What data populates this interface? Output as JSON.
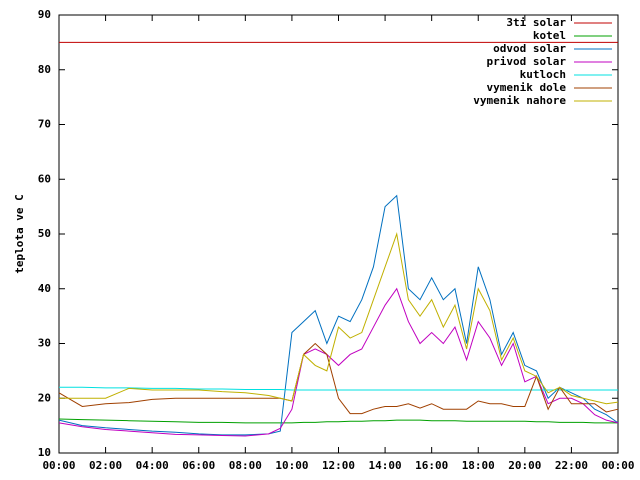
{
  "chart_data": {
    "type": "line",
    "ylabel": "teplota ve C",
    "x": [
      0,
      1,
      2,
      3,
      4,
      5,
      6,
      7,
      8,
      9,
      9.5,
      10,
      10.5,
      11,
      11.5,
      12,
      12.5,
      13,
      13.5,
      14,
      14.5,
      15,
      15.5,
      16,
      16.5,
      17,
      17.5,
      18,
      18.5,
      19,
      19.5,
      20,
      20.5,
      21,
      21.5,
      22,
      22.5,
      23,
      23.5,
      24
    ],
    "xlim": [
      0,
      24
    ],
    "xticks": [
      {
        "value": 0,
        "label": "00:00"
      },
      {
        "value": 2,
        "label": "02:00"
      },
      {
        "value": 4,
        "label": "04:00"
      },
      {
        "value": 6,
        "label": "06:00"
      },
      {
        "value": 8,
        "label": "08:00"
      },
      {
        "value": 10,
        "label": "10:00"
      },
      {
        "value": 12,
        "label": "12:00"
      },
      {
        "value": 14,
        "label": "14:00"
      },
      {
        "value": 16,
        "label": "16:00"
      },
      {
        "value": 18,
        "label": "18:00"
      },
      {
        "value": 20,
        "label": "20:00"
      },
      {
        "value": 22,
        "label": "22:00"
      },
      {
        "value": 24,
        "label": "00:00"
      }
    ],
    "ylim": [
      10,
      90
    ],
    "yticks": [
      10,
      20,
      30,
      40,
      50,
      60,
      70,
      80,
      90
    ],
    "legend": "top-right",
    "series": [
      {
        "name": "3ti solar",
        "color": "#c00000",
        "values": [
          85,
          85,
          85,
          85,
          85,
          85,
          85,
          85,
          85,
          85,
          85,
          85,
          85,
          85,
          85,
          85,
          85,
          85,
          85,
          85,
          85,
          85,
          85,
          85,
          85,
          85,
          85,
          85,
          85,
          85,
          85,
          85,
          85,
          85,
          85,
          85,
          85,
          85,
          85,
          85
        ]
      },
      {
        "name": "kotel",
        "color": "#00a000",
        "values": [
          16.2,
          16.1,
          16,
          15.9,
          15.8,
          15.7,
          15.6,
          15.6,
          15.5,
          15.5,
          15.5,
          15.5,
          15.6,
          15.6,
          15.7,
          15.7,
          15.8,
          15.8,
          15.9,
          15.9,
          16,
          16,
          16,
          15.9,
          15.9,
          15.9,
          15.8,
          15.8,
          15.8,
          15.8,
          15.8,
          15.8,
          15.7,
          15.7,
          15.6,
          15.6,
          15.6,
          15.5,
          15.5,
          15.5
        ]
      },
      {
        "name": "odvod solar",
        "color": "#0070c0",
        "values": [
          16,
          15,
          14.6,
          14.3,
          14,
          13.8,
          13.5,
          13.3,
          13.3,
          13.5,
          14,
          32,
          34,
          36,
          30,
          35,
          34,
          38,
          44,
          55,
          57,
          40,
          38,
          42,
          38,
          40,
          30,
          44,
          38,
          28,
          32,
          26,
          25,
          20,
          22,
          21,
          20,
          18,
          17,
          15.5
        ]
      },
      {
        "name": "privod solar",
        "color": "#c000c0",
        "values": [
          15.5,
          14.8,
          14.3,
          14,
          13.7,
          13.4,
          13.3,
          13.2,
          13.1,
          13.5,
          14.5,
          18,
          28,
          29,
          28,
          26,
          28,
          29,
          33,
          37,
          40,
          34,
          30,
          32,
          30,
          33,
          27,
          34,
          31,
          26,
          30,
          23,
          24,
          19,
          20,
          20,
          19,
          17,
          16,
          15.5
        ]
      },
      {
        "name": "kutloch",
        "color": "#00e0e0",
        "values": [
          22,
          22,
          21.9,
          21.9,
          21.8,
          21.8,
          21.7,
          21.7,
          21.6,
          21.6,
          21.6,
          21.5,
          21.5,
          21.5,
          21.5,
          21.5,
          21.5,
          21.5,
          21.5,
          21.5,
          21.5,
          21.5,
          21.5,
          21.5,
          21.5,
          21.5,
          21.5,
          21.5,
          21.5,
          21.5,
          21.5,
          21.5,
          21.5,
          21.5,
          21.5,
          21.5,
          21.5,
          21.5,
          21.5,
          21.5
        ]
      },
      {
        "name": "vymenik dole",
        "color": "#a04000",
        "values": [
          21,
          18.5,
          19,
          19.2,
          19.8,
          20,
          20,
          20,
          20,
          20,
          20,
          19.5,
          28,
          30,
          28,
          20,
          17.2,
          17.2,
          18,
          18.5,
          18.5,
          19,
          18.2,
          19,
          18,
          18,
          18,
          19.5,
          19,
          19,
          18.5,
          18.5,
          24,
          18,
          22,
          19,
          19,
          19,
          17.5,
          18
        ]
      },
      {
        "name": "vymenik nahore",
        "color": "#c0b000",
        "values": [
          20,
          20,
          20,
          21.8,
          21.5,
          21.5,
          21.5,
          21.2,
          21,
          20.5,
          20,
          19.5,
          28,
          26,
          25,
          33,
          31,
          32,
          38,
          44,
          50,
          38,
          35,
          38,
          33,
          37,
          29,
          40,
          36,
          27,
          31,
          25,
          24,
          21,
          22,
          20.5,
          20,
          19.5,
          19,
          19.3
        ]
      }
    ]
  }
}
